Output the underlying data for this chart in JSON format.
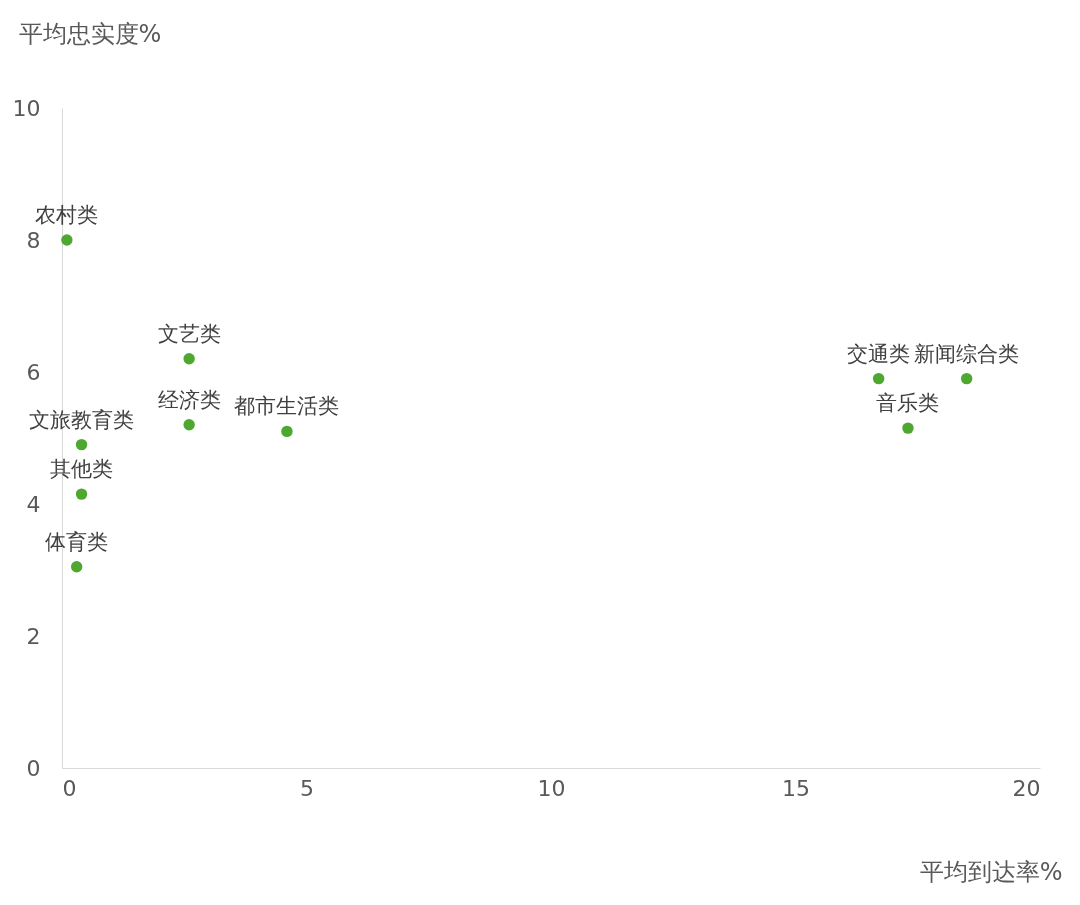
{
  "chart_data": {
    "type": "scatter",
    "xlabel": "平均到达率%",
    "ylabel": "平均忠实度%",
    "x": [
      0.1,
      2.6,
      2.6,
      4.6,
      0.4,
      0.4,
      0.3,
      16.7,
      18.5,
      17.3
    ],
    "series": [
      {
        "color": "#4ea72e",
        "values": [
          8.0,
          6.2,
          5.2,
          5.1,
          4.9,
          4.15,
          3.05,
          5.9,
          5.9,
          5.15
        ]
      }
    ],
    "annotations": [
      {
        "text": "农村类",
        "x": 0.1,
        "y": 8.0
      },
      {
        "text": "文艺类",
        "x": 2.6,
        "y": 6.2
      },
      {
        "text": "经济类",
        "x": 2.6,
        "y": 5.2
      },
      {
        "text": "都市生活类",
        "x": 4.6,
        "y": 5.1
      },
      {
        "text": "文旅教育类",
        "x": 0.4,
        "y": 4.9
      },
      {
        "text": "其他类",
        "x": 0.4,
        "y": 4.15
      },
      {
        "text": "体育类",
        "x": 0.3,
        "y": 3.05
      },
      {
        "text": "交通类",
        "x": 16.7,
        "y": 5.9
      },
      {
        "text": "新闻综合类",
        "x": 18.5,
        "y": 5.9
      },
      {
        "text": "音乐类",
        "x": 17.3,
        "y": 5.15
      }
    ],
    "xlim": [
      0,
      20
    ],
    "xticks": [
      0,
      5,
      10,
      15,
      20
    ],
    "ylim": [
      0,
      10
    ],
    "yticks": [
      0,
      2,
      4,
      6,
      8,
      10
    ],
    "grid": false,
    "marker": "circle"
  }
}
